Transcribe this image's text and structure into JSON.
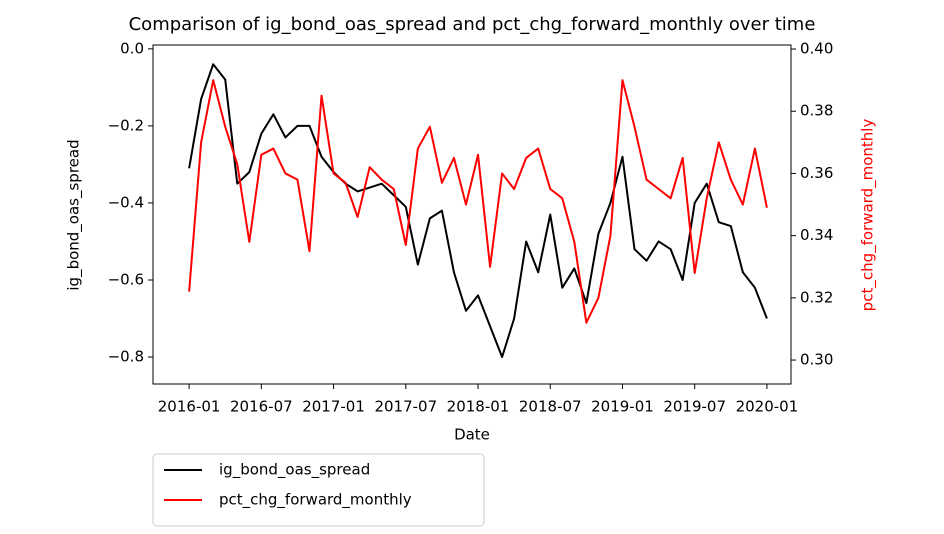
{
  "chart_data": {
    "type": "line",
    "title": "Comparison of ig_bond_oas_spread and pct_chg_forward_monthly over time",
    "x_label": "Date",
    "y_label": "ig_bond_oas_spread",
    "y2_label": "pct_chg_forward_monthly",
    "x": [
      "2016-01",
      "2016-02",
      "2016-03",
      "2016-04",
      "2016-05",
      "2016-06",
      "2016-07",
      "2016-08",
      "2016-09",
      "2016-10",
      "2016-11",
      "2016-12",
      "2017-01",
      "2017-02",
      "2017-03",
      "2017-04",
      "2017-05",
      "2017-06",
      "2017-07",
      "2017-08",
      "2017-09",
      "2017-10",
      "2017-11",
      "2017-12",
      "2018-01",
      "2018-02",
      "2018-03",
      "2018-04",
      "2018-05",
      "2018-06",
      "2018-07",
      "2018-08",
      "2018-09",
      "2018-10",
      "2018-11",
      "2018-12",
      "2019-01",
      "2019-02",
      "2019-03",
      "2019-04",
      "2019-05",
      "2019-06",
      "2019-07",
      "2019-08",
      "2019-09",
      "2019-10",
      "2019-11",
      "2019-12",
      "2020-01"
    ],
    "xlim": [
      "2015-10",
      "2020-03"
    ],
    "xticks": [
      "2016-01",
      "2016-07",
      "2017-01",
      "2017-07",
      "2018-01",
      "2018-07",
      "2019-01",
      "2019-07",
      "2020-01"
    ],
    "ylim": [
      -0.87,
      0.01
    ],
    "yticks": [
      {
        "value": -0.8,
        "label": "−0.8"
      },
      {
        "value": -0.6,
        "label": "−0.6"
      },
      {
        "value": -0.4,
        "label": "−0.4"
      },
      {
        "value": -0.2,
        "label": "−0.2"
      },
      {
        "value": 0,
        "label": "0.0"
      }
    ],
    "y2lim": [
      0.2923,
      0.4013
    ],
    "y2ticks": [
      {
        "value": 0.3,
        "label": "0.30"
      },
      {
        "value": 0.32,
        "label": "0.32"
      },
      {
        "value": 0.34,
        "label": "0.34"
      },
      {
        "value": 0.36,
        "label": "0.36"
      },
      {
        "value": 0.38,
        "label": "0.38"
      },
      {
        "value": 0.4,
        "label": "0.40"
      }
    ],
    "y2_label_color": "#ff0000",
    "legend": "below",
    "series": [
      {
        "name": "ig_bond_oas_spread",
        "color": "#000000",
        "values": [
          -0.31,
          -0.13,
          -0.04,
          -0.08,
          -0.35,
          -0.32,
          -0.22,
          -0.17,
          -0.23,
          -0.2,
          -0.2,
          -0.28,
          -0.32,
          -0.35,
          -0.37,
          -0.36,
          -0.35,
          -0.38,
          -0.41,
          -0.56,
          -0.44,
          -0.42,
          -0.58,
          -0.68,
          -0.64,
          -0.72,
          -0.8,
          -0.7,
          -0.5,
          -0.58,
          -0.43,
          -0.62,
          -0.57,
          -0.66,
          -0.48,
          -0.4,
          -0.28,
          -0.52,
          -0.55,
          -0.5,
          -0.52,
          -0.6,
          -0.4,
          -0.35,
          -0.45,
          -0.46,
          -0.58,
          -0.62,
          -0.7
        ]
      },
      {
        "name": "pct_chg_forward_monthly",
        "color": "#ff0000",
        "axis": "y2",
        "values": [
          0.322,
          0.37,
          0.39,
          0.375,
          0.363,
          0.338,
          0.366,
          0.368,
          0.36,
          0.358,
          0.335,
          0.385,
          0.36,
          0.357,
          0.346,
          0.362,
          0.358,
          0.355,
          0.337,
          0.368,
          0.375,
          0.357,
          0.365,
          0.35,
          0.366,
          0.33,
          0.36,
          0.355,
          0.365,
          0.368,
          0.355,
          0.352,
          0.338,
          0.312,
          0.32,
          0.34,
          0.39,
          0.375,
          0.358,
          0.355,
          0.352,
          0.365,
          0.328,
          0.352,
          0.37,
          0.358,
          0.35,
          0.368,
          0.349
        ]
      }
    ]
  }
}
